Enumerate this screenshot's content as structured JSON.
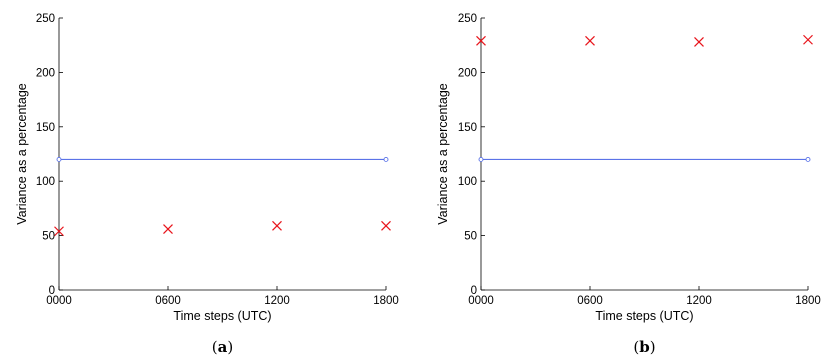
{
  "chart_data": [
    {
      "type": "scatter",
      "panel_label": "(a)",
      "panel_letter": "a",
      "xlabel": "Time steps (UTC)",
      "ylabel": "Variance as a percentage",
      "x_ticks": [
        "0000",
        "0600",
        "1200",
        "1800"
      ],
      "y_ticks": [
        0,
        50,
        100,
        150,
        200,
        250
      ],
      "xlim": [
        "0000",
        "1800"
      ],
      "ylim": [
        0,
        250
      ],
      "grid": false,
      "series": [
        {
          "type": "scatter",
          "marker": "x",
          "color": "#e8141b",
          "x": [
            "0000",
            "0600",
            "1200",
            "1800"
          ],
          "y": [
            54,
            56,
            59,
            59
          ]
        },
        {
          "type": "line",
          "marker": "o",
          "color": "#5b73e8",
          "x": [
            "0000",
            "1800"
          ],
          "y": [
            120,
            120
          ]
        }
      ]
    },
    {
      "type": "scatter",
      "panel_label": "(b)",
      "panel_letter": "b",
      "xlabel": "Time steps (UTC)",
      "ylabel": "Variance as a percentage",
      "x_ticks": [
        "0000",
        "0600",
        "1200",
        "1800"
      ],
      "y_ticks": [
        0,
        50,
        100,
        150,
        200,
        250
      ],
      "xlim": [
        "0000",
        "1800"
      ],
      "ylim": [
        0,
        250
      ],
      "grid": false,
      "series": [
        {
          "type": "scatter",
          "marker": "x",
          "color": "#e8141b",
          "x": [
            "0000",
            "0600",
            "1200",
            "1800"
          ],
          "y": [
            229,
            229,
            228,
            230
          ]
        },
        {
          "type": "line",
          "marker": "o",
          "color": "#5b73e8",
          "x": [
            "0000",
            "1800"
          ],
          "y": [
            120,
            120
          ]
        }
      ]
    }
  ]
}
